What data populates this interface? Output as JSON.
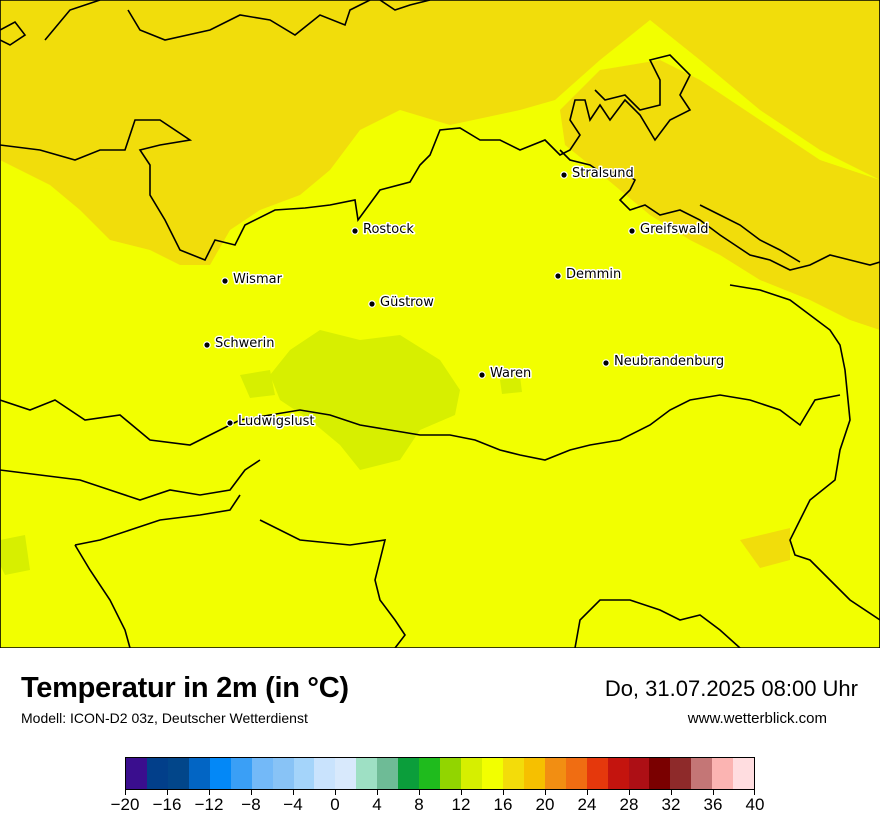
{
  "map": {
    "cities": [
      {
        "name": "Stralsund"
      },
      {
        "name": "Rostock"
      },
      {
        "name": "Greifswald"
      },
      {
        "name": "Wismar"
      },
      {
        "name": "Demmin"
      },
      {
        "name": "Güstrow"
      },
      {
        "name": "Schwerin"
      },
      {
        "name": "Neubrandenburg"
      },
      {
        "name": "Waren"
      },
      {
        "name": "Ludwigslust"
      }
    ],
    "colors": {
      "base": "#f2ff00",
      "warm": "#f1dd0b",
      "cool": "#d7ef00",
      "coast": "#000000"
    }
  },
  "footer": {
    "title": "Temperatur in 2m (in °C)",
    "subtitle": "Modell: ICON-D2 03z, Deutscher Wetterdienst",
    "datetime": "Do, 31.07.2025 08:00 Uhr",
    "website": "www.wetterblick.com"
  },
  "legend": {
    "min": -20,
    "max": 40,
    "tick_labels": [
      "−20",
      "−16",
      "−12",
      "−8",
      "−4",
      "0",
      "4",
      "8",
      "12",
      "16",
      "20",
      "24",
      "28",
      "32",
      "36",
      "40"
    ],
    "colors": [
      "#3a0e8e",
      "#023f8a",
      "#02468a",
      "#0265c4",
      "#0388f7",
      "#3a9ff6",
      "#73b9f8",
      "#88c3f6",
      "#a4d4fa",
      "#c9e3fd",
      "#d8e9fc",
      "#9ee0c4",
      "#6ebb96",
      "#0b9e3b",
      "#1fbb1d",
      "#92d500",
      "#d6ef00",
      "#f2ff00",
      "#f3dc0a",
      "#f6c000",
      "#f28e12",
      "#f06d12",
      "#e5380c",
      "#c4140e",
      "#ad0f15",
      "#7a0000",
      "#8e2a2a",
      "#c47676",
      "#fbb4b2",
      "#ffdde0"
    ]
  }
}
